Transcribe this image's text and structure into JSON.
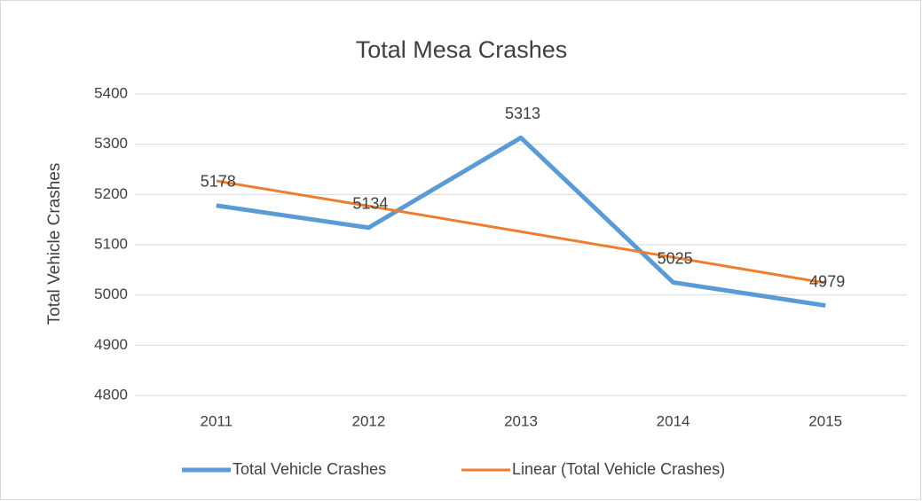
{
  "chart_data": {
    "type": "line",
    "title": "Total Mesa Crashes",
    "y_label": "Total Vehicle Crashes",
    "categories": [
      "2011",
      "2012",
      "2013",
      "2014",
      "2015"
    ],
    "series": [
      {
        "name": "Total Vehicle Crashes",
        "color": "#5b9bd5",
        "values": [
          5178,
          5134,
          5313,
          5025,
          4979
        ],
        "data_labels": true
      },
      {
        "name": "Linear (Total Vehicle Crashes)",
        "color": "#ed7d31",
        "values": [
          5227,
          5177,
          5126,
          5075,
          5024
        ],
        "data_labels": false
      }
    ],
    "ylim": [
      4800,
      5400
    ],
    "yticks": [
      4800,
      4900,
      5000,
      5100,
      5200,
      5300,
      5400
    ],
    "grid": true,
    "legend": "bottom"
  }
}
